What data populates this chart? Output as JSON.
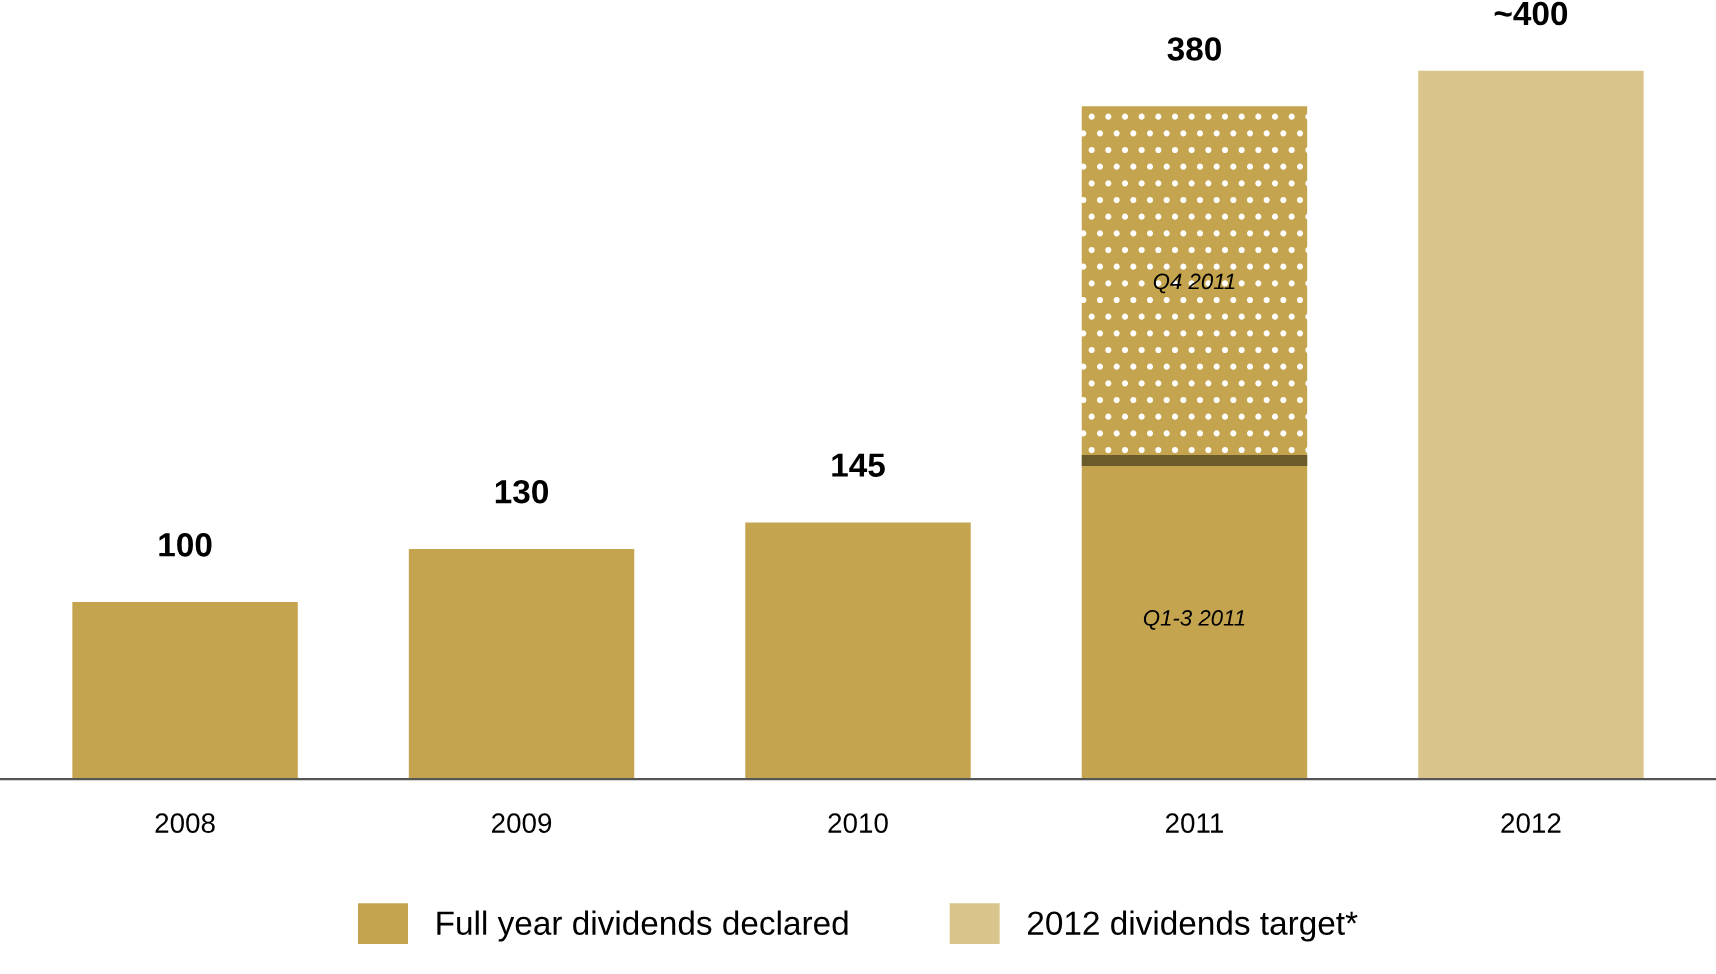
{
  "chart_data": {
    "type": "bar",
    "stacked": true,
    "categories": [
      "2008",
      "2009",
      "2010",
      "2011",
      "2012"
    ],
    "series": [
      {
        "name": "Full year dividends declared",
        "color": "#c4a44f",
        "values": [
          100,
          130,
          145,
          180,
          null
        ],
        "value_labels": [
          "100",
          "130",
          "145",
          null,
          null
        ]
      },
      {
        "color": "#c4a44f",
        "values": [
          null,
          null,
          null,
          200,
          null
        ]
      },
      {
        "name": "2012 dividends target*",
        "color": "#d9c58c",
        "values": [
          null,
          null,
          null,
          null,
          400
        ],
        "value_labels": [
          null,
          null,
          null,
          null,
          "~400"
        ]
      }
    ],
    "totals": [
      null,
      null,
      null,
      "380",
      null
    ],
    "annotations": [
      "Q1-3 2011",
      "Q4 2011"
    ],
    "tick_labels": "x",
    "legend": "bottom"
  }
}
